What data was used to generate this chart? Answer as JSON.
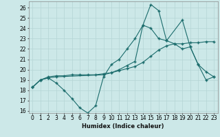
{
  "xlabel": "Humidex (Indice chaleur)",
  "bg_color": "#cce8e8",
  "grid_color": "#b5d5d5",
  "line_color": "#1a6b6b",
  "xlim": [
    -0.5,
    23.5
  ],
  "ylim": [
    15.8,
    26.6
  ],
  "xticks": [
    0,
    1,
    2,
    3,
    4,
    5,
    6,
    7,
    8,
    9,
    10,
    11,
    12,
    13,
    14,
    15,
    16,
    17,
    18,
    19,
    20,
    21,
    22,
    23
  ],
  "yticks": [
    16,
    17,
    18,
    19,
    20,
    21,
    22,
    23,
    24,
    25,
    26
  ],
  "line1_x": [
    0,
    1,
    2,
    3,
    4,
    5,
    6,
    7,
    8,
    9,
    10,
    11,
    12,
    13,
    14,
    15,
    16,
    17,
    18,
    19,
    20,
    21,
    22,
    23
  ],
  "line1_y": [
    18.3,
    19.0,
    19.2,
    18.7,
    18.0,
    17.2,
    16.3,
    15.8,
    16.5,
    19.3,
    20.5,
    21.0,
    22.0,
    23.0,
    24.3,
    24.0,
    23.0,
    22.8,
    22.5,
    22.0,
    22.2,
    20.5,
    19.8,
    19.3
  ],
  "line2_x": [
    0,
    1,
    2,
    3,
    4,
    5,
    6,
    7,
    8,
    9,
    10,
    11,
    12,
    13,
    14,
    15,
    16,
    17,
    18,
    19,
    20,
    21,
    22,
    23
  ],
  "line2_y": [
    18.3,
    19.0,
    19.3,
    19.4,
    19.4,
    19.5,
    19.5,
    19.5,
    19.5,
    19.6,
    19.7,
    19.9,
    20.1,
    20.3,
    20.7,
    21.3,
    21.9,
    22.3,
    22.5,
    22.5,
    22.6,
    22.6,
    22.7,
    22.7
  ],
  "line3_x": [
    0,
    1,
    2,
    3,
    9,
    10,
    11,
    12,
    13,
    14,
    15,
    16,
    17,
    19,
    20,
    21,
    22,
    23
  ],
  "line3_y": [
    18.3,
    19.0,
    19.2,
    19.3,
    19.5,
    19.7,
    20.0,
    20.4,
    20.8,
    24.3,
    26.3,
    25.7,
    22.8,
    24.8,
    22.2,
    20.5,
    19.0,
    19.3
  ]
}
